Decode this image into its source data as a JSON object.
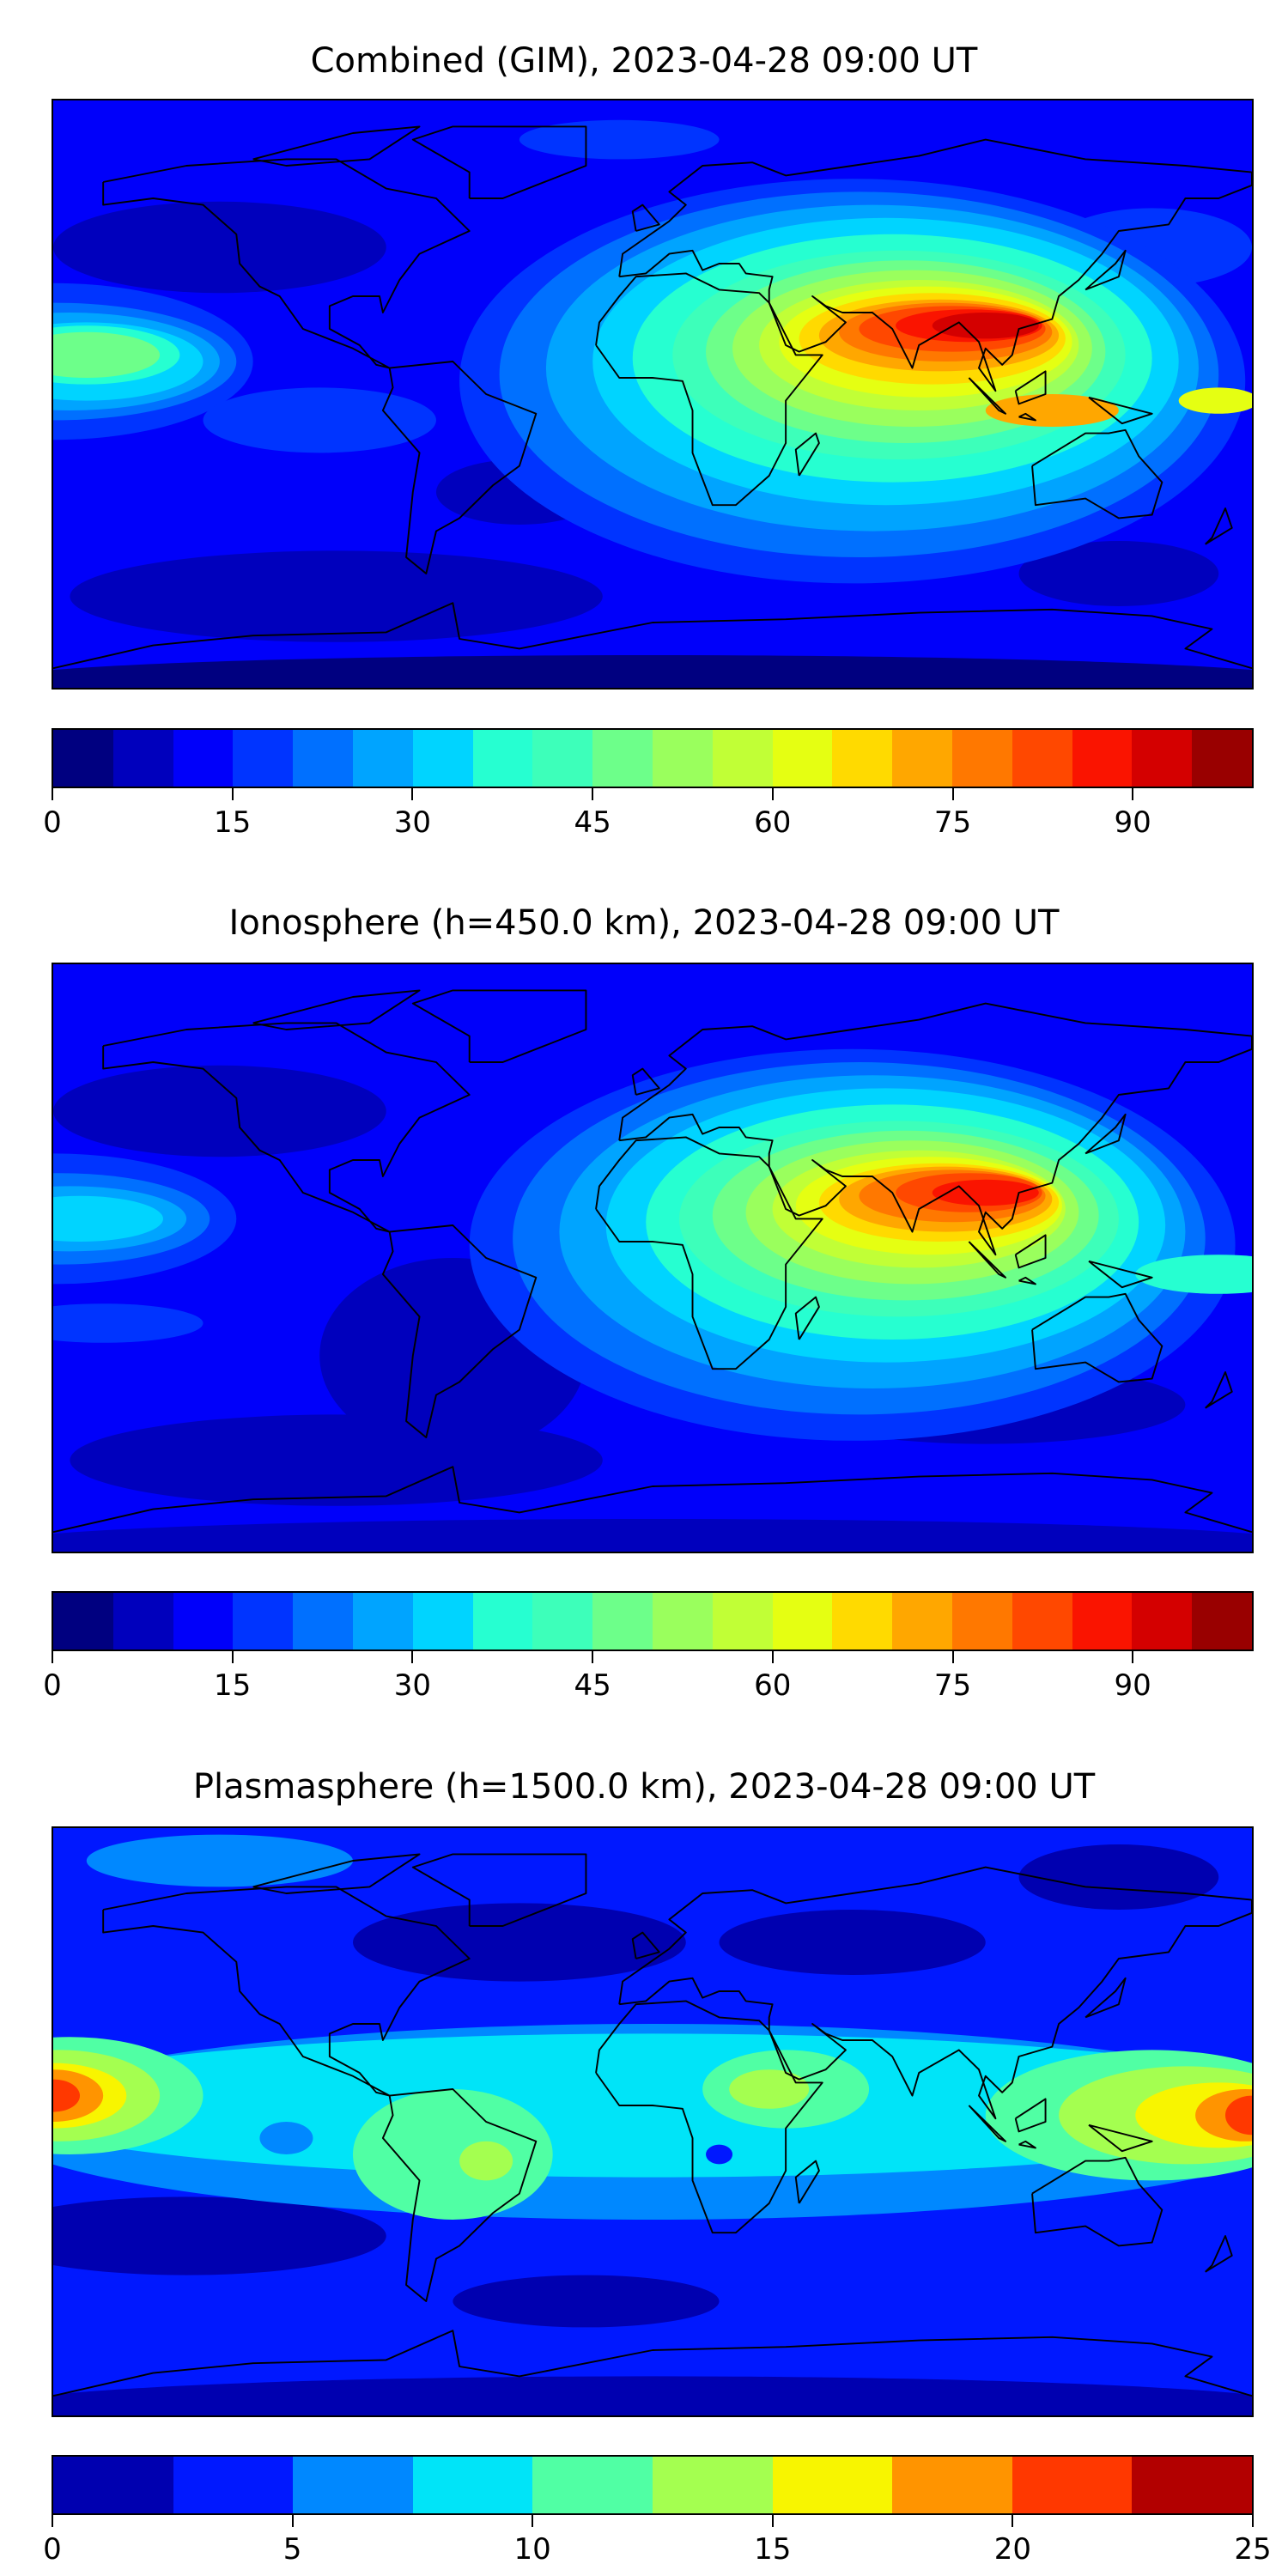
{
  "chart_data": [
    {
      "type": "heatmap",
      "title": "Combined (GIM), 2023-04-28 09:00 UT",
      "projection": "global lon/lat map with coastlines",
      "colorbar": {
        "levels": [
          0,
          5,
          10,
          15,
          20,
          25,
          30,
          35,
          40,
          45,
          50,
          55,
          60,
          65,
          70,
          75,
          80,
          85,
          90,
          95,
          100
        ],
        "ticks": [
          "0",
          "15",
          "30",
          "45",
          "60",
          "75",
          "90"
        ],
        "tick_values": [
          0,
          15,
          30,
          45,
          60,
          75,
          90
        ],
        "range": [
          0,
          100
        ],
        "colors": [
          "#000080",
          "#0000bd",
          "#0000fa",
          "#0034ff",
          "#0070ff",
          "#00a4ff",
          "#00d4ff",
          "#26ffd1",
          "#3dffba",
          "#6dff8a",
          "#9aff5d",
          "#c1ff36",
          "#e5ff12",
          "#ffda00",
          "#ffa700",
          "#ff7800",
          "#ff4800",
          "#fa1400",
          "#d40000",
          "#990000"
        ]
      },
      "features": {
        "max_region": "Arabia / India / SE Asia (~90-95)",
        "secondary_max": "central Pacific (~50-55)"
      }
    },
    {
      "type": "heatmap",
      "title": "Ionosphere  (h=450.0 km), 2023-04-28 09:00 UT",
      "projection": "global lon/lat map with coastlines",
      "colorbar": {
        "levels": [
          0,
          5,
          10,
          15,
          20,
          25,
          30,
          35,
          40,
          45,
          50,
          55,
          60,
          65,
          70,
          75,
          80,
          85,
          90,
          95,
          100
        ],
        "ticks": [
          "0",
          "15",
          "30",
          "45",
          "60",
          "75",
          "90"
        ],
        "tick_values": [
          0,
          15,
          30,
          45,
          60,
          75,
          90
        ],
        "range": [
          0,
          100
        ],
        "colors": [
          "#000080",
          "#0000bd",
          "#0000fa",
          "#0034ff",
          "#0070ff",
          "#00a4ff",
          "#00d4ff",
          "#26ffd1",
          "#3dffba",
          "#6dff8a",
          "#9aff5d",
          "#c1ff36",
          "#e5ff12",
          "#ffda00",
          "#ffa700",
          "#ff7800",
          "#ff4800",
          "#fa1400",
          "#d40000",
          "#990000"
        ]
      },
      "features": {
        "max_region": "Arabia / India / SE Asia (~80-85)"
      }
    },
    {
      "type": "heatmap",
      "title": "Plasmasphere (h=1500.0 km), 2023-04-28 09:00 UT",
      "projection": "global lon/lat map with coastlines",
      "colorbar": {
        "levels": [
          0,
          2.5,
          5,
          7.5,
          10,
          12.5,
          15,
          17.5,
          20,
          22.5,
          25
        ],
        "ticks": [
          "0",
          "5",
          "10",
          "15",
          "20",
          "25"
        ],
        "tick_values": [
          0,
          5,
          10,
          15,
          20,
          25
        ],
        "range": [
          0,
          25
        ],
        "colors": [
          "#0000b0",
          "#0018ff",
          "#0088ff",
          "#00e4f8",
          "#50ffa4",
          "#a4ff50",
          "#f8f500",
          "#ff9400",
          "#ff3800",
          "#b20000"
        ]
      },
      "features": {
        "max_region": "central Pacific (~20-22.5)",
        "secondary_max": "western Pacific (~17.5-20)"
      }
    }
  ]
}
